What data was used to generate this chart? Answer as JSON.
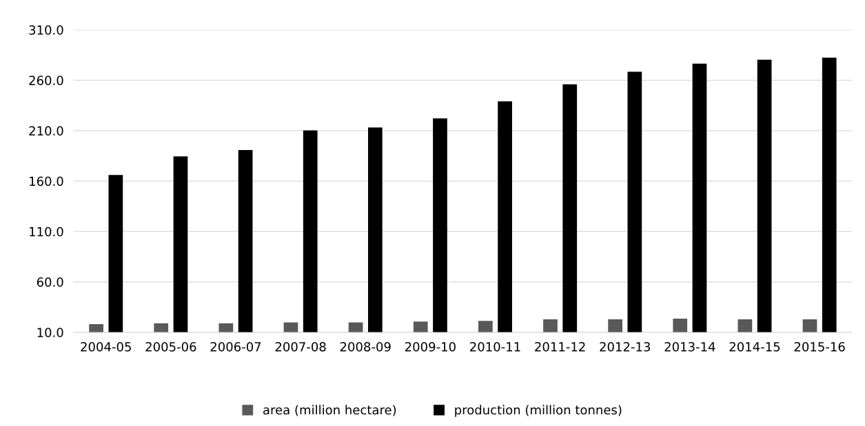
{
  "chart_data": {
    "type": "bar",
    "categories": [
      "2004-05",
      "2005-06",
      "2006-07",
      "2007-08",
      "2008-09",
      "2009-10",
      "2010-11",
      "2011-12",
      "2012-13",
      "2013-14",
      "2014-15",
      "2015-16"
    ],
    "series": [
      {
        "name": "area (million hectare)",
        "color": "#595959",
        "values": [
          18.1,
          19.0,
          19.0,
          19.8,
          19.8,
          20.6,
          21.3,
          22.8,
          22.8,
          23.6,
          22.8,
          22.8
        ]
      },
      {
        "name": "production (million tonnes)",
        "color": "#000000",
        "values": [
          166.0,
          184.4,
          190.8,
          210.2,
          213.2,
          222.2,
          239.1,
          256.0,
          268.5,
          276.4,
          280.4,
          282.4
        ]
      }
    ],
    "ylim": [
      10,
      310
    ],
    "yticks": [
      {
        "value": 10,
        "label": "10.0"
      },
      {
        "value": 60,
        "label": "60.0"
      },
      {
        "value": 110,
        "label": "110.0"
      },
      {
        "value": 160,
        "label": "160.0"
      },
      {
        "value": 210,
        "label": "210.0"
      },
      {
        "value": 260,
        "label": "260.0"
      },
      {
        "value": 310,
        "label": "310.0"
      }
    ],
    "grid": "y",
    "legend": "bottom"
  }
}
